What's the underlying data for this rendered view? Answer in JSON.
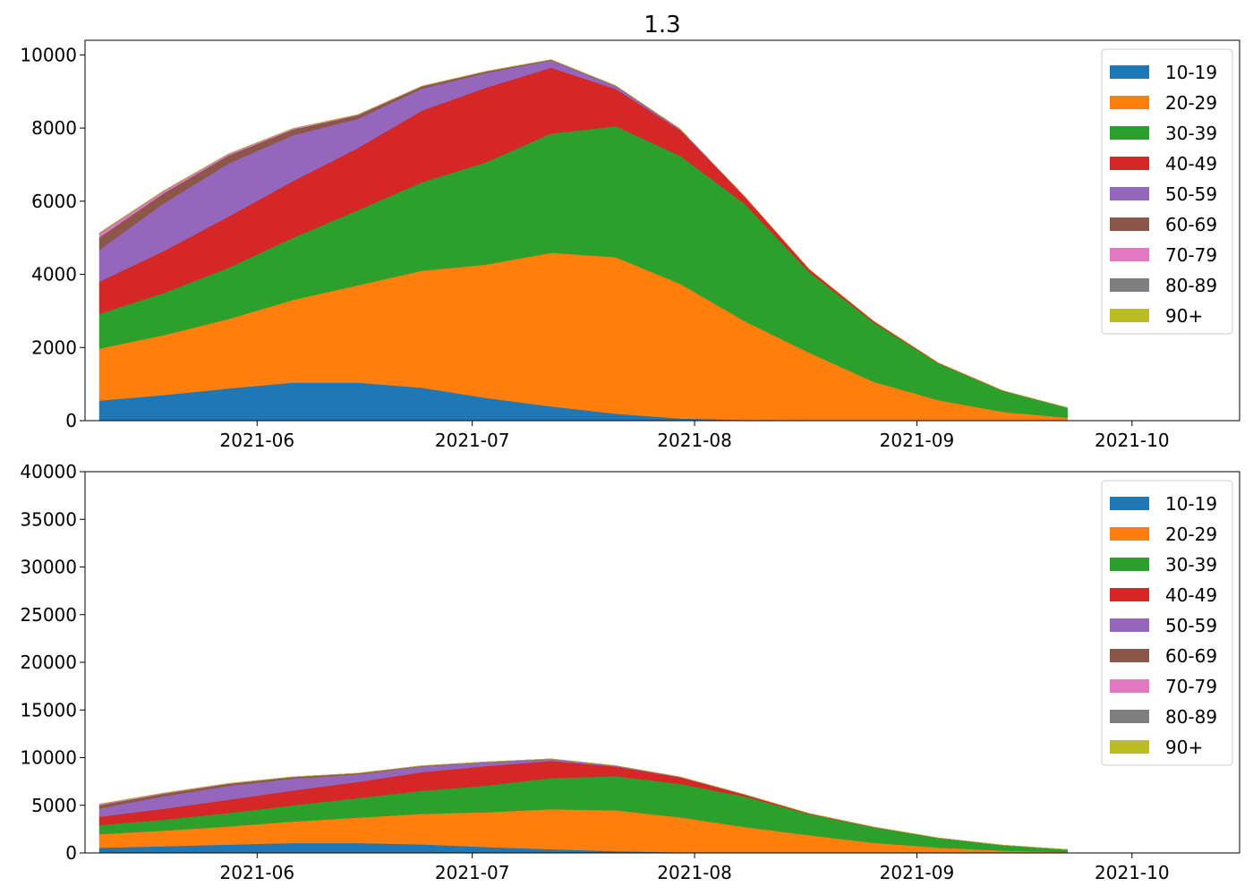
{
  "figure": {
    "title": "1.3"
  },
  "chart_data": [
    {
      "type": "area",
      "stacked": true,
      "title": "1.3",
      "xlabel": "",
      "ylabel": "",
      "xlim": [
        "2021-05-08",
        "2021-10-16"
      ],
      "ylim": [
        0,
        10400
      ],
      "xticks": [
        "2021-06-01",
        "2021-07-01",
        "2021-08-01",
        "2021-09-01",
        "2021-10-01"
      ],
      "xtick_labels": [
        "2021-06",
        "2021-07",
        "2021-08",
        "2021-09",
        "2021-10"
      ],
      "yticks": [
        0,
        2000,
        4000,
        6000,
        8000,
        10000
      ],
      "ytick_labels": [
        "0",
        "2000",
        "4000",
        "6000",
        "8000",
        "10000"
      ],
      "grid": false,
      "legend_position": "top-right",
      "x": [
        "2021-05-10",
        "2021-05-19",
        "2021-05-28",
        "2021-06-06",
        "2021-06-15",
        "2021-06-24",
        "2021-07-03",
        "2021-07-12",
        "2021-07-21",
        "2021-07-30",
        "2021-08-08",
        "2021-08-17",
        "2021-08-26",
        "2021-09-04",
        "2021-09-13",
        "2021-09-22"
      ],
      "series": [
        {
          "name": "10-19",
          "color": "#1f77b4",
          "values": [
            550,
            700,
            880,
            1040,
            1040,
            900,
            620,
            390,
            190,
            60,
            20,
            5,
            0,
            0,
            0,
            0
          ]
        },
        {
          "name": "20-29",
          "color": "#ff7f0e",
          "values": [
            1420,
            1640,
            1900,
            2260,
            2660,
            3200,
            3650,
            4200,
            4280,
            3680,
            2700,
            1850,
            1060,
            560,
            240,
            80
          ]
        },
        {
          "name": "30-39",
          "color": "#2ca02c",
          "values": [
            950,
            1150,
            1400,
            1700,
            2050,
            2420,
            2800,
            3260,
            3580,
            3500,
            3200,
            2200,
            1620,
            1000,
            570,
            270
          ]
        },
        {
          "name": "40-49",
          "color": "#d62728",
          "values": [
            880,
            1150,
            1400,
            1550,
            1700,
            1960,
            2040,
            1800,
            1020,
            700,
            200,
            80,
            40,
            20,
            10,
            5
          ]
        },
        {
          "name": "50-59",
          "color": "#9467bd",
          "values": [
            870,
            1300,
            1450,
            1250,
            800,
            600,
            400,
            200,
            80,
            30,
            10,
            5,
            0,
            0,
            0,
            0
          ]
        },
        {
          "name": "60-69",
          "color": "#8c564b",
          "values": [
            340,
            280,
            220,
            160,
            100,
            60,
            40,
            20,
            10,
            5,
            0,
            0,
            0,
            0,
            0,
            0
          ]
        },
        {
          "name": "70-79",
          "color": "#e377c2",
          "values": [
            100,
            60,
            40,
            25,
            15,
            10,
            5,
            0,
            0,
            0,
            0,
            0,
            0,
            0,
            0,
            0
          ]
        },
        {
          "name": "80-89",
          "color": "#7f7f7f",
          "values": [
            20,
            10,
            5,
            5,
            0,
            0,
            0,
            0,
            0,
            0,
            0,
            0,
            0,
            0,
            0,
            0
          ]
        },
        {
          "name": "90+",
          "color": "#bcbd22",
          "values": [
            5,
            5,
            0,
            0,
            0,
            0,
            0,
            0,
            0,
            0,
            0,
            0,
            0,
            0,
            0,
            0
          ]
        }
      ]
    },
    {
      "type": "area",
      "stacked": true,
      "title": "",
      "xlabel": "",
      "ylabel": "",
      "xlim": [
        "2021-05-08",
        "2021-10-16"
      ],
      "ylim": [
        0,
        40000
      ],
      "xticks": [
        "2021-06-01",
        "2021-07-01",
        "2021-08-01",
        "2021-09-01",
        "2021-10-01"
      ],
      "xtick_labels": [
        "2021-06",
        "2021-07",
        "2021-08",
        "2021-09",
        "2021-10"
      ],
      "yticks": [
        0,
        5000,
        10000,
        15000,
        20000,
        25000,
        30000,
        35000,
        40000
      ],
      "ytick_labels": [
        "0",
        "5000",
        "10000",
        "15000",
        "20000",
        "25000",
        "30000",
        "35000",
        "40000"
      ],
      "grid": false,
      "legend_position": "top-right",
      "x": [
        "2021-05-10",
        "2021-05-19",
        "2021-05-28",
        "2021-06-06",
        "2021-06-15",
        "2021-06-24",
        "2021-07-03",
        "2021-07-12",
        "2021-07-21",
        "2021-07-30",
        "2021-08-08",
        "2021-08-17",
        "2021-08-26",
        "2021-09-04",
        "2021-09-13",
        "2021-09-22"
      ],
      "series": [
        {
          "name": "10-19",
          "color": "#1f77b4",
          "values": [
            550,
            700,
            880,
            1040,
            1040,
            900,
            620,
            390,
            190,
            60,
            20,
            5,
            0,
            0,
            0,
            0
          ]
        },
        {
          "name": "20-29",
          "color": "#ff7f0e",
          "values": [
            1420,
            1640,
            1900,
            2260,
            2660,
            3200,
            3650,
            4200,
            4280,
            3680,
            2700,
            1850,
            1060,
            560,
            240,
            80
          ]
        },
        {
          "name": "30-39",
          "color": "#2ca02c",
          "values": [
            950,
            1150,
            1400,
            1700,
            2050,
            2420,
            2800,
            3260,
            3580,
            3500,
            3200,
            2200,
            1620,
            1000,
            570,
            270
          ]
        },
        {
          "name": "40-49",
          "color": "#d62728",
          "values": [
            880,
            1150,
            1400,
            1550,
            1700,
            1960,
            2040,
            1800,
            1020,
            700,
            200,
            80,
            40,
            20,
            10,
            5
          ]
        },
        {
          "name": "50-59",
          "color": "#9467bd",
          "values": [
            870,
            1300,
            1450,
            1250,
            800,
            600,
            400,
            200,
            80,
            30,
            10,
            5,
            0,
            0,
            0,
            0
          ]
        },
        {
          "name": "60-69",
          "color": "#8c564b",
          "values": [
            340,
            280,
            220,
            160,
            100,
            60,
            40,
            20,
            10,
            5,
            0,
            0,
            0,
            0,
            0,
            0
          ]
        },
        {
          "name": "70-79",
          "color": "#e377c2",
          "values": [
            100,
            60,
            40,
            25,
            15,
            10,
            5,
            0,
            0,
            0,
            0,
            0,
            0,
            0,
            0,
            0
          ]
        },
        {
          "name": "80-89",
          "color": "#7f7f7f",
          "values": [
            20,
            10,
            5,
            5,
            0,
            0,
            0,
            0,
            0,
            0,
            0,
            0,
            0,
            0,
            0,
            0
          ]
        },
        {
          "name": "90+",
          "color": "#bcbd22",
          "values": [
            5,
            5,
            0,
            0,
            0,
            0,
            0,
            0,
            0,
            0,
            0,
            0,
            0,
            0,
            0,
            0
          ]
        }
      ]
    }
  ]
}
